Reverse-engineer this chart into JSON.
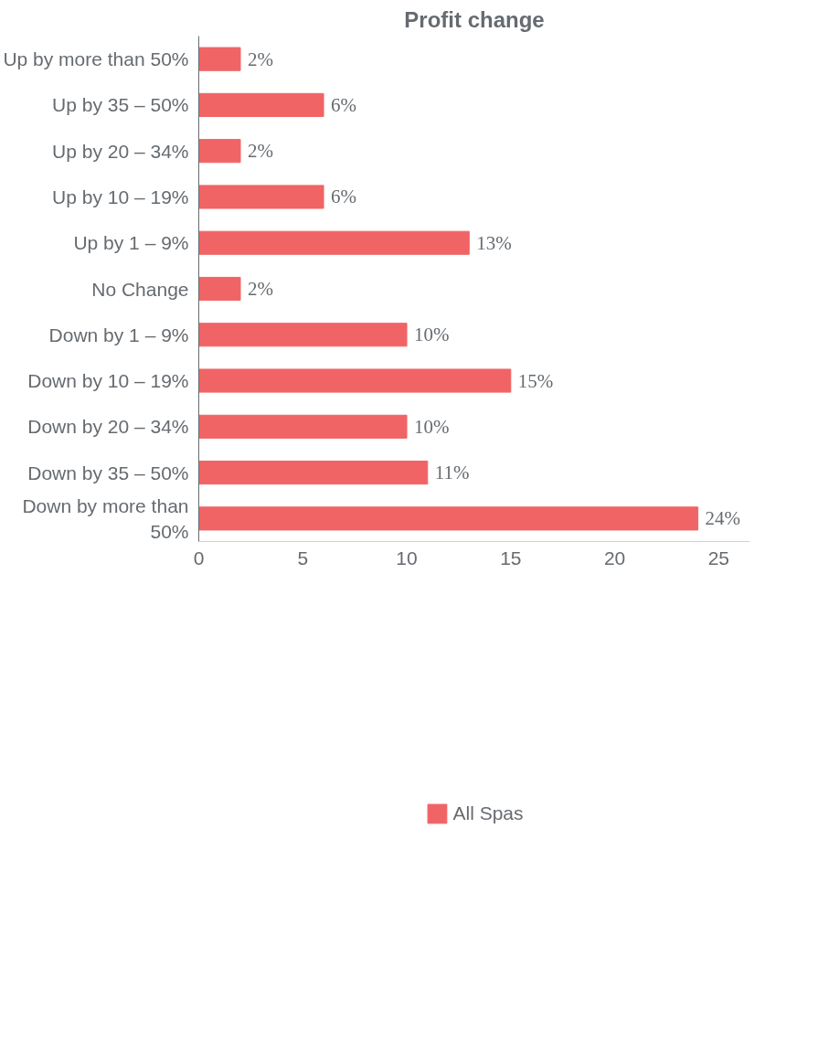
{
  "chart_data": {
    "type": "bar",
    "title": "Profit change",
    "orientation": "horizontal",
    "categories": [
      "Up by more than 50%",
      "Up by 35 – 50%",
      "Up by 20 – 34%",
      "Up by 10 – 19%",
      "Up by 1 – 9%",
      "No Change",
      "Down by 1 – 9%",
      "Down by 10 – 19%",
      "Down by 20 – 34%",
      "Down by 35 – 50%",
      "Down by more than 50%"
    ],
    "series": [
      {
        "name": "All Spas",
        "color": "#f06466",
        "values": [
          2,
          6,
          2,
          6,
          13,
          2,
          10,
          15,
          10,
          11,
          24
        ],
        "value_labels": [
          "2%",
          "6%",
          "2%",
          "6%",
          "13%",
          "2%",
          "10%",
          "15%",
          "10%",
          "11%",
          "24%"
        ]
      }
    ],
    "xlim": [
      0,
      26.5
    ],
    "xticks": [
      0,
      5,
      10,
      15,
      20,
      25
    ],
    "grid": false,
    "legend": "bottom"
  }
}
